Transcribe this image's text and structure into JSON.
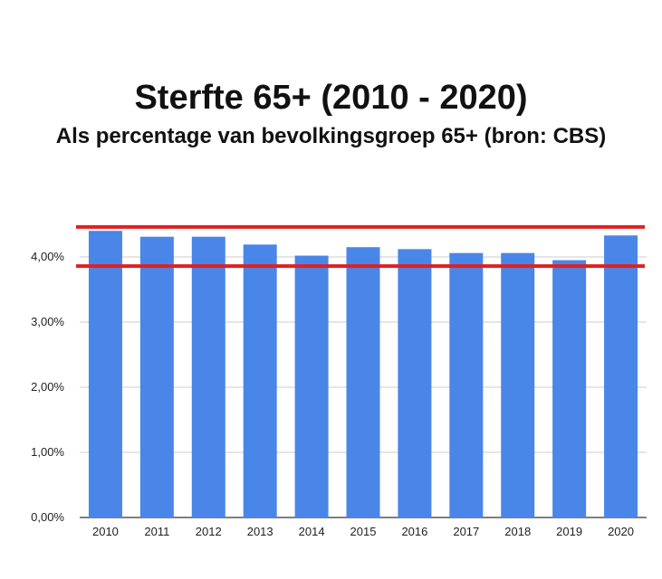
{
  "chart_data": {
    "type": "bar",
    "title": "Sterfte 65+ (2010 - 2020)",
    "subtitle": "Als percentage van bevolkingsgroep 65+ (bron: CBS)",
    "categories": [
      "2010",
      "2011",
      "2012",
      "2013",
      "2014",
      "2015",
      "2016",
      "2017",
      "2018",
      "2019",
      "2020"
    ],
    "values": [
      4.4,
      4.31,
      4.31,
      4.19,
      4.02,
      4.15,
      4.12,
      4.06,
      4.06,
      3.95,
      4.33
    ],
    "y_ticks": [
      0,
      1,
      2,
      3,
      4
    ],
    "y_tick_labels": [
      "0,00%",
      "1,00%",
      "2,00%",
      "3,00%",
      "4,00%"
    ],
    "ylim": [
      0,
      4.5
    ],
    "unit": "%",
    "grid": true,
    "legend": "none",
    "bar_color": "#4a86e8",
    "reference_lines": [
      4.46,
      3.86
    ],
    "reference_line_color": "#e02020"
  }
}
